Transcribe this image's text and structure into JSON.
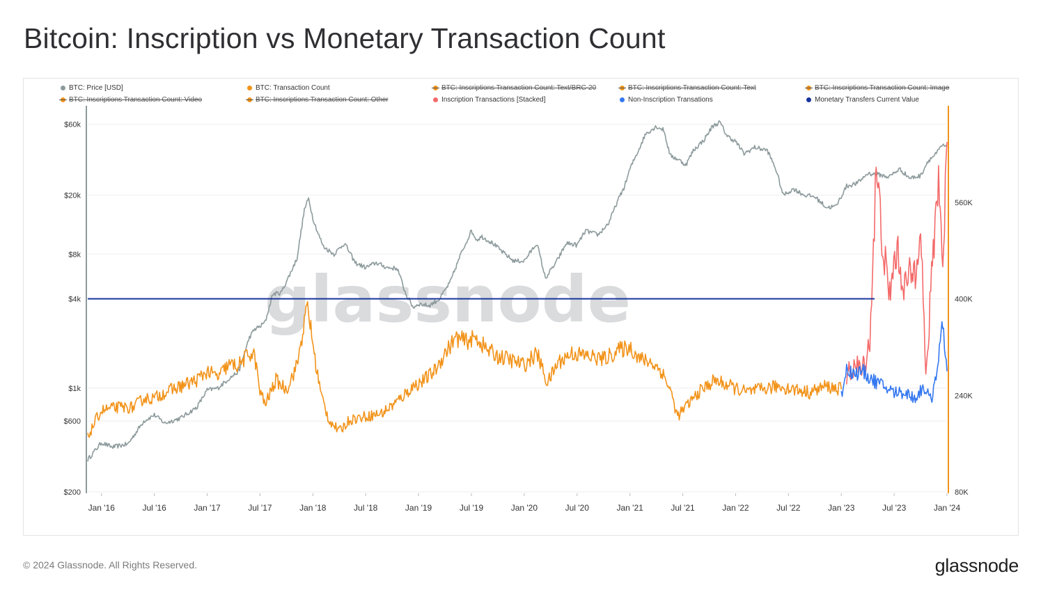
{
  "page": {
    "title": "Bitcoin: Inscription vs Monetary Transaction Count",
    "copyright": "© 2024 Glassnode. All Rights Reserved.",
    "logo": "glassnode",
    "watermark": "glassnode"
  },
  "legend": [
    {
      "label": "BTC: Price [USD]",
      "color": "#8d9a9c",
      "active": true
    },
    {
      "label": "BTC: Transaction Count",
      "color": "#f2931a",
      "active": true
    },
    {
      "label": "BTC: Inscriptions Transaction Count: Text/BRC-20",
      "color": "#f2931a",
      "active": false
    },
    {
      "label": "BTC: Inscriptions Transaction Count: Text",
      "color": "#f2931a",
      "active": false
    },
    {
      "label": "BTC: Inscriptions Transaction Count: Image",
      "color": "#f2931a",
      "active": false
    },
    {
      "label": "BTC: Inscriptions Transaction Count: Video",
      "color": "#f2931a",
      "active": false
    },
    {
      "label": "BTC: Inscriptions Transaction Count: Other",
      "color": "#f2931a",
      "active": false
    },
    {
      "label": "Inscription Transactions [Stacked]",
      "color": "#f46a6a",
      "active": true
    },
    {
      "label": "Non-Inscription Transations",
      "color": "#3478f0",
      "active": true
    },
    {
      "label": "Monetary Transfers Current Value",
      "color": "#17349c",
      "active": true
    }
  ],
  "colors": {
    "price": "#8d9a9c",
    "tx_count": "#f2931a",
    "inscriptions": "#f46a6a",
    "non_inscriptions": "#3478f0",
    "monetary_line": "#17349c",
    "left_axis": "#8d9a9c",
    "right_axis": "#f2931a"
  },
  "chart_data": {
    "type": "line",
    "title": "Bitcoin: Inscription vs Monetary Transaction Count",
    "x_range": [
      2015.87,
      2024.0
    ],
    "x_ticks": [
      {
        "x": 2016.0,
        "label": "Jan '16"
      },
      {
        "x": 2016.5,
        "label": "Jul '16"
      },
      {
        "x": 2017.0,
        "label": "Jan '17"
      },
      {
        "x": 2017.5,
        "label": "Jul '17"
      },
      {
        "x": 2018.0,
        "label": "Jan '18"
      },
      {
        "x": 2018.5,
        "label": "Jul '18"
      },
      {
        "x": 2019.0,
        "label": "Jan '19"
      },
      {
        "x": 2019.5,
        "label": "Jul '19"
      },
      {
        "x": 2020.0,
        "label": "Jan '20"
      },
      {
        "x": 2020.5,
        "label": "Jul '20"
      },
      {
        "x": 2021.0,
        "label": "Jan '21"
      },
      {
        "x": 2021.5,
        "label": "Jul '21"
      },
      {
        "x": 2022.0,
        "label": "Jan '22"
      },
      {
        "x": 2022.5,
        "label": "Jul '22"
      },
      {
        "x": 2023.0,
        "label": "Jan '23"
      },
      {
        "x": 2023.5,
        "label": "Jul '23"
      },
      {
        "x": 2024.0,
        "label": "Jan '24"
      }
    ],
    "y_left": {
      "scale": "log",
      "range": [
        200,
        80000
      ],
      "ticks": [
        {
          "value": 200,
          "label": "$200"
        },
        {
          "value": 600,
          "label": "$600"
        },
        {
          "value": 1000,
          "label": "$1k"
        },
        {
          "value": 4000,
          "label": "$4k"
        },
        {
          "value": 8000,
          "label": "$8k"
        },
        {
          "value": 20000,
          "label": "$20k"
        },
        {
          "value": 60000,
          "label": "$60k"
        }
      ]
    },
    "y_right": {
      "scale": "linear",
      "range": [
        80000,
        720000
      ],
      "ticks": [
        {
          "value": 80000,
          "label": "80K"
        },
        {
          "value": 240000,
          "label": "240K"
        },
        {
          "value": 400000,
          "label": "400K"
        },
        {
          "value": 560000,
          "label": "560K"
        }
      ]
    },
    "series": [
      {
        "name": "BTC: Price [USD]",
        "axis": "left",
        "points": [
          [
            2015.87,
            330
          ],
          [
            2016.0,
            430
          ],
          [
            2016.1,
            400
          ],
          [
            2016.25,
            420
          ],
          [
            2016.4,
            600
          ],
          [
            2016.5,
            660
          ],
          [
            2016.6,
            580
          ],
          [
            2016.75,
            630
          ],
          [
            2016.9,
            740
          ],
          [
            2017.0,
            970
          ],
          [
            2017.1,
            1000
          ],
          [
            2017.2,
            1150
          ],
          [
            2017.3,
            1300
          ],
          [
            2017.4,
            2200
          ],
          [
            2017.45,
            2500
          ],
          [
            2017.5,
            2600
          ],
          [
            2017.55,
            2800
          ],
          [
            2017.62,
            4300
          ],
          [
            2017.7,
            4400
          ],
          [
            2017.78,
            5800
          ],
          [
            2017.85,
            7500
          ],
          [
            2017.92,
            16000
          ],
          [
            2017.96,
            19000
          ],
          [
            2018.0,
            14000
          ],
          [
            2018.05,
            11000
          ],
          [
            2018.1,
            9000
          ],
          [
            2018.2,
            8000
          ],
          [
            2018.3,
            9500
          ],
          [
            2018.4,
            7000
          ],
          [
            2018.5,
            6500
          ],
          [
            2018.6,
            7000
          ],
          [
            2018.7,
            6500
          ],
          [
            2018.8,
            6400
          ],
          [
            2018.88,
            4300
          ],
          [
            2018.95,
            3500
          ],
          [
            2019.0,
            3700
          ],
          [
            2019.1,
            3600
          ],
          [
            2019.2,
            4000
          ],
          [
            2019.3,
            5200
          ],
          [
            2019.4,
            8000
          ],
          [
            2019.5,
            11500
          ],
          [
            2019.55,
            10000
          ],
          [
            2019.6,
            10500
          ],
          [
            2019.7,
            9500
          ],
          [
            2019.8,
            8200
          ],
          [
            2019.9,
            7200
          ],
          [
            2020.0,
            7200
          ],
          [
            2020.12,
            9500
          ],
          [
            2020.2,
            5500
          ],
          [
            2020.3,
            7000
          ],
          [
            2020.4,
            9500
          ],
          [
            2020.5,
            9200
          ],
          [
            2020.58,
            11500
          ],
          [
            2020.7,
            10800
          ],
          [
            2020.8,
            13000
          ],
          [
            2020.88,
            18000
          ],
          [
            2020.95,
            23000
          ],
          [
            2021.0,
            30000
          ],
          [
            2021.08,
            40000
          ],
          [
            2021.15,
            52000
          ],
          [
            2021.25,
            58000
          ],
          [
            2021.32,
            55000
          ],
          [
            2021.38,
            37000
          ],
          [
            2021.45,
            35000
          ],
          [
            2021.53,
            32000
          ],
          [
            2021.6,
            40000
          ],
          [
            2021.7,
            47000
          ],
          [
            2021.78,
            58000
          ],
          [
            2021.85,
            62000
          ],
          [
            2021.92,
            50000
          ],
          [
            2022.0,
            46000
          ],
          [
            2022.08,
            38000
          ],
          [
            2022.18,
            42000
          ],
          [
            2022.3,
            40000
          ],
          [
            2022.38,
            30000
          ],
          [
            2022.45,
            20000
          ],
          [
            2022.55,
            22000
          ],
          [
            2022.65,
            20000
          ],
          [
            2022.75,
            19500
          ],
          [
            2022.86,
            16500
          ],
          [
            2022.95,
            16800
          ],
          [
            2023.05,
            23000
          ],
          [
            2023.15,
            24000
          ],
          [
            2023.25,
            28000
          ],
          [
            2023.35,
            27500
          ],
          [
            2023.45,
            26500
          ],
          [
            2023.55,
            30000
          ],
          [
            2023.65,
            26000
          ],
          [
            2023.75,
            27000
          ],
          [
            2023.82,
            34000
          ],
          [
            2023.9,
            38000
          ],
          [
            2023.95,
            43000
          ],
          [
            2024.0,
            42500
          ]
        ]
      },
      {
        "name": "BTC: Transaction Count",
        "axis": "right",
        "points": [
          [
            2015.87,
            170000
          ],
          [
            2015.95,
            200000
          ],
          [
            2016.0,
            215000
          ],
          [
            2016.15,
            220000
          ],
          [
            2016.3,
            220000
          ],
          [
            2016.4,
            235000
          ],
          [
            2016.5,
            235000
          ],
          [
            2016.6,
            245000
          ],
          [
            2016.75,
            255000
          ],
          [
            2016.9,
            265000
          ],
          [
            2017.0,
            280000
          ],
          [
            2017.1,
            270000
          ],
          [
            2017.2,
            290000
          ],
          [
            2017.3,
            290000
          ],
          [
            2017.4,
            310000
          ],
          [
            2017.45,
            305000
          ],
          [
            2017.5,
            245000
          ],
          [
            2017.55,
            225000
          ],
          [
            2017.65,
            265000
          ],
          [
            2017.75,
            250000
          ],
          [
            2017.85,
            290000
          ],
          [
            2017.95,
            390000
          ],
          [
            2018.02,
            300000
          ],
          [
            2018.08,
            240000
          ],
          [
            2018.15,
            200000
          ],
          [
            2018.25,
            180000
          ],
          [
            2018.35,
            200000
          ],
          [
            2018.5,
            205000
          ],
          [
            2018.65,
            210000
          ],
          [
            2018.8,
            230000
          ],
          [
            2018.95,
            255000
          ],
          [
            2019.05,
            265000
          ],
          [
            2019.15,
            280000
          ],
          [
            2019.25,
            310000
          ],
          [
            2019.35,
            335000
          ],
          [
            2019.45,
            330000
          ],
          [
            2019.55,
            335000
          ],
          [
            2019.65,
            315000
          ],
          [
            2019.75,
            305000
          ],
          [
            2019.85,
            300000
          ],
          [
            2020.0,
            290000
          ],
          [
            2020.12,
            310000
          ],
          [
            2020.22,
            260000
          ],
          [
            2020.32,
            295000
          ],
          [
            2020.45,
            310000
          ],
          [
            2020.6,
            305000
          ],
          [
            2020.75,
            300000
          ],
          [
            2020.9,
            315000
          ],
          [
            2021.0,
            320000
          ],
          [
            2021.1,
            300000
          ],
          [
            2021.2,
            295000
          ],
          [
            2021.3,
            280000
          ],
          [
            2021.38,
            250000
          ],
          [
            2021.45,
            205000
          ],
          [
            2021.55,
            225000
          ],
          [
            2021.65,
            245000
          ],
          [
            2021.8,
            265000
          ],
          [
            2021.95,
            255000
          ],
          [
            2022.1,
            245000
          ],
          [
            2022.25,
            250000
          ],
          [
            2022.4,
            255000
          ],
          [
            2022.55,
            250000
          ],
          [
            2022.7,
            245000
          ],
          [
            2022.85,
            255000
          ],
          [
            2023.0,
            250000
          ]
        ]
      },
      {
        "name": "Inscription Transactions [Stacked]",
        "axis": "right",
        "points": [
          [
            2023.05,
            270000
          ],
          [
            2023.12,
            290000
          ],
          [
            2023.2,
            280000
          ],
          [
            2023.27,
            330000
          ],
          [
            2023.33,
            610000
          ],
          [
            2023.4,
            480000
          ],
          [
            2023.45,
            400000
          ],
          [
            2023.52,
            480000
          ],
          [
            2023.6,
            420000
          ],
          [
            2023.7,
            450000
          ],
          [
            2023.75,
            540000
          ],
          [
            2023.8,
            260000
          ],
          [
            2023.87,
            480000
          ],
          [
            2023.92,
            610000
          ],
          [
            2023.96,
            450000
          ],
          [
            2024.0,
            660000
          ]
        ]
      },
      {
        "name": "Non-Inscription Transations",
        "axis": "right",
        "points": [
          [
            2023.0,
            240000
          ],
          [
            2023.05,
            285000
          ],
          [
            2023.12,
            275000
          ],
          [
            2023.2,
            280000
          ],
          [
            2023.3,
            265000
          ],
          [
            2023.4,
            255000
          ],
          [
            2023.5,
            245000
          ],
          [
            2023.6,
            245000
          ],
          [
            2023.7,
            235000
          ],
          [
            2023.78,
            255000
          ],
          [
            2023.85,
            230000
          ],
          [
            2023.92,
            300000
          ],
          [
            2023.96,
            360000
          ],
          [
            2024.0,
            280000
          ]
        ]
      },
      {
        "name": "Monetary Transfers Current Value",
        "axis": "right",
        "constant": 400000
      }
    ]
  }
}
